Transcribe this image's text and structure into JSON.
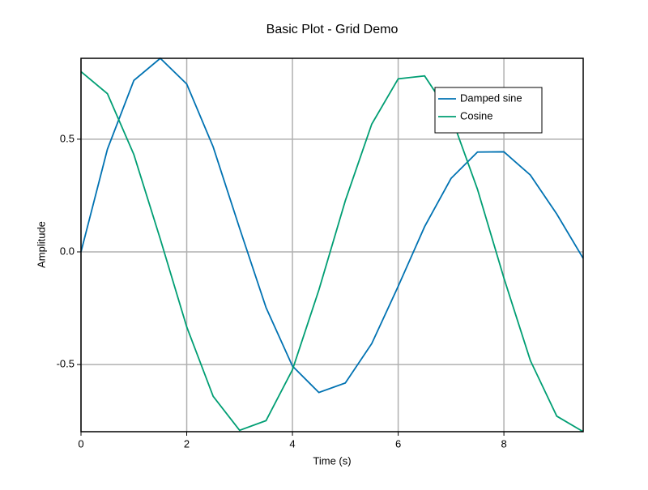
{
  "chart_data": {
    "type": "line",
    "title": "Basic Plot - Grid Demo",
    "x_label": "Time (s)",
    "y_label": "Amplitude",
    "x": [
      0,
      0.5,
      1,
      1.5,
      2,
      2.5,
      3,
      3.5,
      4,
      4.5,
      5,
      5.5,
      6,
      6.5,
      7,
      7.5,
      8,
      8.5,
      9,
      9.5
    ],
    "series": [
      {
        "name": "Damped sine",
        "color": "#0072b2",
        "values": [
          0,
          0.456,
          0.761,
          0.859,
          0.745,
          0.466,
          0.105,
          -0.247,
          -0.507,
          -0.624,
          -0.582,
          -0.407,
          -0.153,
          0.112,
          0.326,
          0.443,
          0.444,
          0.341,
          0.168,
          -0.029
        ]
      },
      {
        "name": "Cosine",
        "color": "#009e73",
        "values": [
          0.8,
          0.702,
          0.432,
          0.057,
          -0.333,
          -0.641,
          -0.792,
          -0.749,
          -0.523,
          -0.169,
          0.227,
          0.567,
          0.768,
          0.781,
          0.603,
          0.278,
          -0.116,
          -0.482,
          -0.729,
          -0.798
        ]
      }
    ],
    "xlim": [
      0,
      9.5
    ],
    "ylim": [
      -0.798,
      0.859
    ],
    "xticks": [
      0,
      2,
      4,
      6,
      8
    ],
    "yticks": [
      {
        "value": -0.5,
        "label": "-0.5"
      },
      {
        "value": 0,
        "label": "0.0"
      },
      0.5
    ],
    "grid": true,
    "legend": "upper right"
  }
}
